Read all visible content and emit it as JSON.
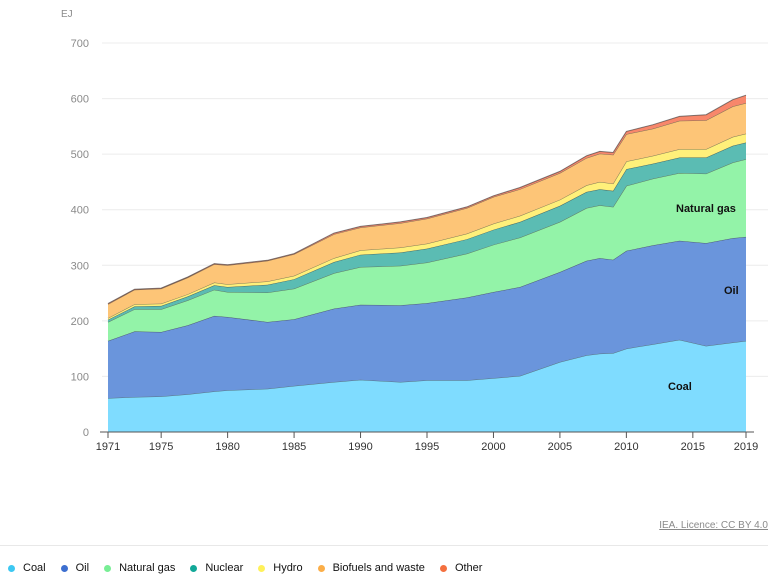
{
  "chart_data": {
    "type": "area",
    "stacked": true,
    "title": "",
    "xlabel": "",
    "ylabel": "EJ",
    "ylim": [
      0,
      700
    ],
    "yticks": [
      0,
      100,
      200,
      300,
      400,
      500,
      600,
      700
    ],
    "xlim": [
      1971,
      2019
    ],
    "xticks": [
      1971,
      1975,
      1980,
      1985,
      1990,
      1995,
      2000,
      2005,
      2010,
      2015,
      2019
    ],
    "grid": true,
    "legend_position": "bottom-left",
    "x": [
      1971,
      1973,
      1975,
      1977,
      1979,
      1980,
      1983,
      1985,
      1988,
      1990,
      1993,
      1995,
      1998,
      2000,
      2002,
      2005,
      2007,
      2008,
      2009,
      2010,
      2012,
      2014,
      2016,
      2018,
      2019
    ],
    "series": [
      {
        "name": "Coal",
        "color": "#7fdcff",
        "values": [
          61,
          63,
          64,
          68,
          73,
          75,
          78,
          83,
          90,
          94,
          90,
          93,
          93,
          97,
          101,
          126,
          138,
          141,
          142,
          150,
          158,
          166,
          155,
          161,
          164
        ]
      },
      {
        "name": "Oil",
        "color": "#6a95dc",
        "values": [
          103,
          118,
          116,
          124,
          136,
          132,
          120,
          120,
          132,
          135,
          138,
          139,
          149,
          155,
          160,
          162,
          170,
          172,
          168,
          176,
          178,
          178,
          185,
          188,
          187
        ]
      },
      {
        "name": "Natural gas",
        "color": "#93f3a8",
        "values": [
          34,
          40,
          41,
          45,
          47,
          45,
          53,
          55,
          64,
          68,
          71,
          73,
          79,
          85,
          89,
          90,
          95,
          95,
          95,
          117,
          120,
          122,
          125,
          136,
          140
        ]
      },
      {
        "name": "Nuclear",
        "color": "#5bbcb3",
        "values": [
          4,
          5,
          6,
          7,
          8,
          9,
          14,
          17,
          20,
          22,
          24,
          25,
          26,
          27,
          28,
          29,
          29,
          29,
          29,
          30,
          27,
          28,
          29,
          30,
          30
        ]
      },
      {
        "name": "Hydro",
        "color": "#fff07a",
        "values": [
          3,
          4,
          4,
          4,
          5,
          5,
          6,
          6,
          7,
          8,
          9,
          9,
          10,
          11,
          11,
          11,
          12,
          13,
          13,
          14,
          14,
          15,
          15,
          16,
          16
        ]
      },
      {
        "name": "Biofuels and waste",
        "color": "#fdc577",
        "values": [
          25,
          26,
          27,
          30,
          33,
          34,
          37,
          39,
          43,
          41,
          44,
          45,
          46,
          48,
          48,
          48,
          49,
          51,
          52,
          49,
          49,
          51,
          52,
          55,
          55
        ]
      },
      {
        "name": "Other",
        "color": "#f8876b",
        "values": [
          1,
          1,
          1,
          1,
          1,
          1,
          1,
          1,
          2,
          2,
          2,
          2,
          2,
          2,
          3,
          3,
          4,
          4,
          4,
          5,
          7,
          8,
          10,
          12,
          14
        ]
      }
    ],
    "annotations": [
      {
        "text": "Natural gas",
        "series": "Natural gas"
      },
      {
        "text": "Oil",
        "series": "Oil"
      },
      {
        "text": "Coal",
        "series": "Coal"
      }
    ]
  },
  "labels": {
    "unit": "EJ",
    "annotation_gas": "Natural gas",
    "annotation_oil": "Oil",
    "annotation_coal": "Coal"
  },
  "credit": "IEA. Licence: CC BY 4.0",
  "legend": [
    {
      "label": "Coal",
      "color": "#3dc8f2"
    },
    {
      "label": "Oil",
      "color": "#3d6fd0"
    },
    {
      "label": "Natural gas",
      "color": "#78ee95"
    },
    {
      "label": "Nuclear",
      "color": "#12a898"
    },
    {
      "label": "Hydro",
      "color": "#fff15a"
    },
    {
      "label": "Biofuels and waste",
      "color": "#fbae48"
    },
    {
      "label": "Other",
      "color": "#f4703f"
    }
  ]
}
